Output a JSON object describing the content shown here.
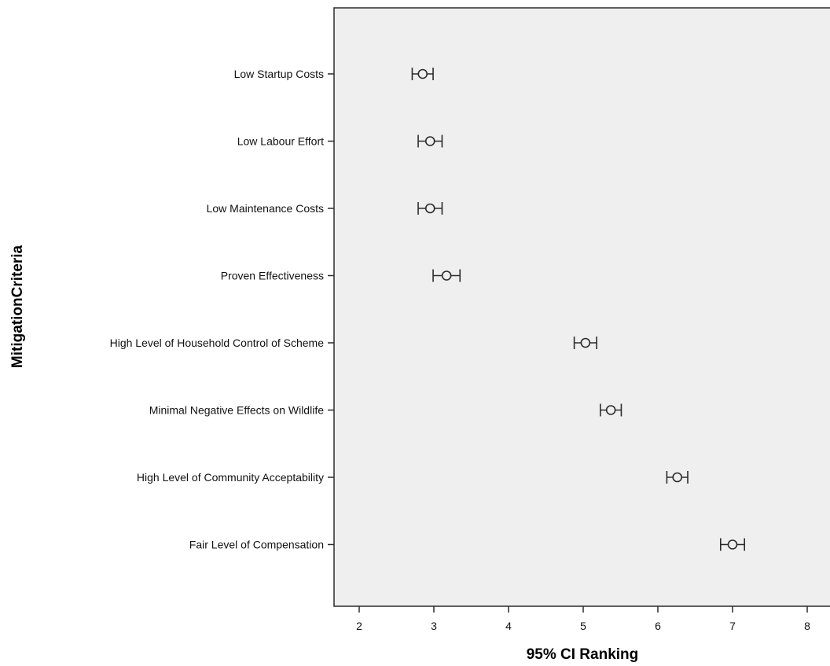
{
  "chart_data": {
    "type": "errorbar",
    "xlabel": "95% CI Ranking",
    "ylabel": "MitigationCriteria",
    "xlim": [
      1.7,
      8.3
    ],
    "xticks": [
      2,
      3,
      4,
      5,
      6,
      7,
      8
    ],
    "grid": false,
    "legend": "none",
    "background_color": "#efefef",
    "marker": "open-circle",
    "categories": [
      "Low Startup Costs",
      "Low Labour Effort",
      "Low Maintenance Costs",
      "Proven Effectiveness",
      "High Level of Household Control of Scheme",
      "Minimal Negative Effects on Wildlife",
      "High Level of Community Acceptability",
      "Fair Level of Compensation"
    ],
    "series": [
      {
        "mean": [
          2.85,
          2.95,
          2.95,
          3.17,
          5.03,
          5.37,
          6.26,
          7.0
        ],
        "lower": [
          2.71,
          2.79,
          2.79,
          2.99,
          4.88,
          5.23,
          6.12,
          6.84
        ],
        "upper": [
          2.99,
          3.11,
          3.11,
          3.35,
          5.18,
          5.51,
          6.4,
          7.16
        ]
      }
    ]
  }
}
